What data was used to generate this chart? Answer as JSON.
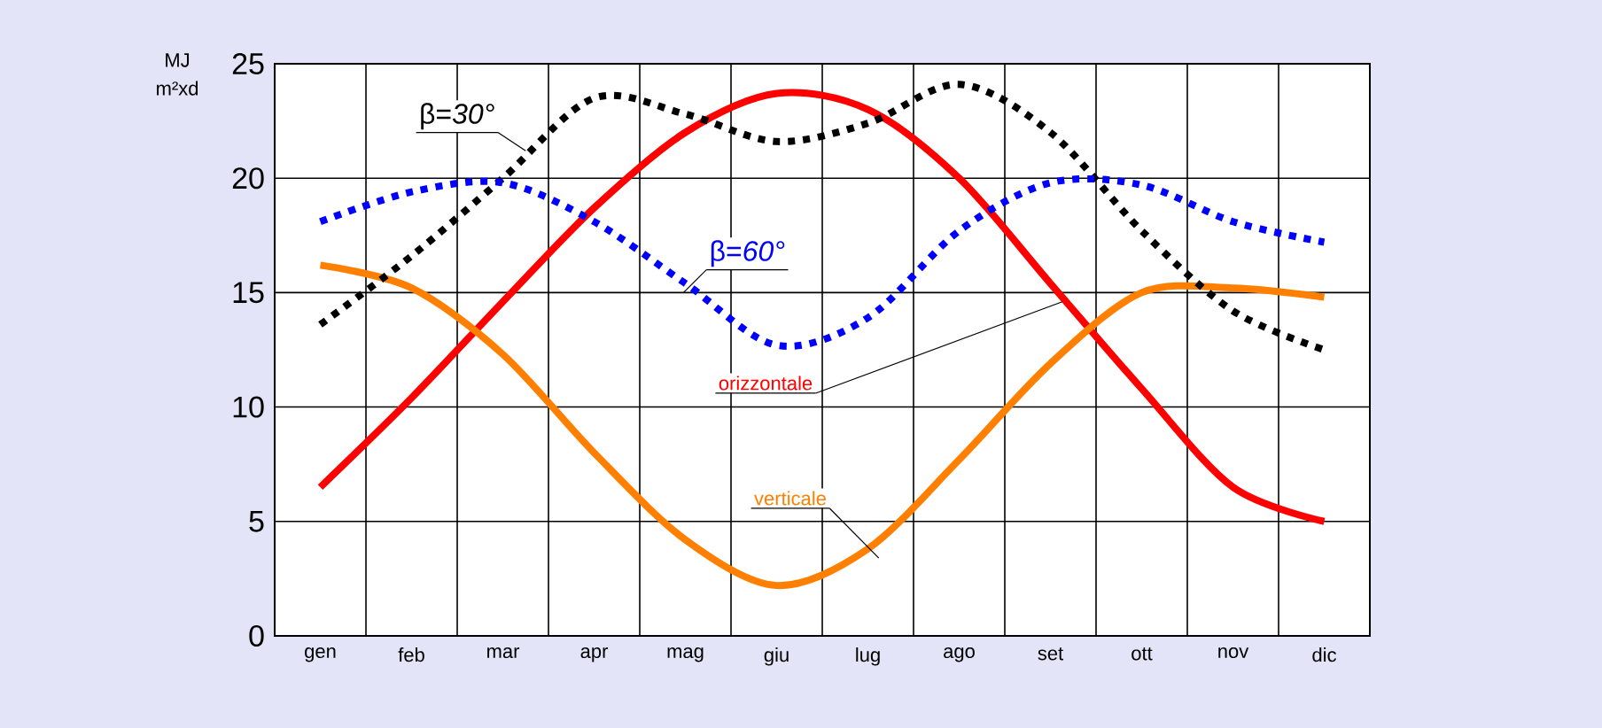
{
  "chart_data": {
    "type": "line",
    "ylabel": "MJ m²xd",
    "categories": [
      "gen",
      "feb",
      "mar",
      "apr",
      "mag",
      "giu",
      "lug",
      "ago",
      "set",
      "ott",
      "nov",
      "dic"
    ],
    "ylim": [
      0,
      25
    ],
    "yticks": [
      0,
      5,
      10,
      15,
      20,
      25
    ],
    "grid": true,
    "marker": "none",
    "series": [
      {
        "name": "orizzontale",
        "color": "#ff0000",
        "line_style": "solid",
        "values": [
          6.5,
          10.4,
          14.6,
          18.7,
          22.0,
          23.7,
          23.0,
          20.0,
          15.4,
          10.8,
          6.5,
          5.0
        ]
      },
      {
        "name": "verticale",
        "color": "#ff8000",
        "line_style": "solid",
        "values": [
          16.2,
          15.2,
          12.3,
          8.0,
          4.2,
          2.2,
          3.8,
          7.7,
          11.9,
          15.0,
          15.2,
          14.8
        ]
      },
      {
        "name": "β=*30°*",
        "color": "#000000",
        "line_style": "dotted",
        "values": [
          13.6,
          16.6,
          20.0,
          23.5,
          22.8,
          21.6,
          22.4,
          24.1,
          22.0,
          17.7,
          14.2,
          12.5
        ]
      },
      {
        "name": "β=*60°*",
        "color": "#0000ff",
        "line_style": "dotted",
        "values": [
          18.1,
          19.4,
          19.8,
          18.1,
          15.4,
          12.7,
          13.9,
          17.7,
          19.8,
          19.7,
          18.1,
          17.2
        ]
      }
    ]
  }
}
